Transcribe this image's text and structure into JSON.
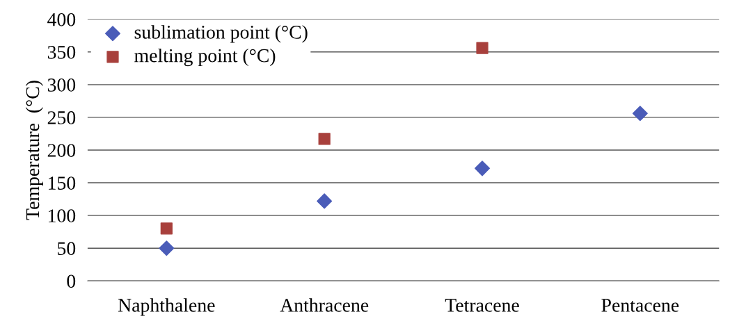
{
  "chart_data": {
    "type": "scatter",
    "ylabel": "Temperature  (°C)",
    "categories": [
      "Naphthalene",
      "Anthracene",
      "Tetracene",
      "Pentacene"
    ],
    "series": [
      {
        "name": "sublimation point (°C)",
        "color": "#4a5cb8",
        "marker": "diamond",
        "values": [
          50,
          122,
          172,
          256
        ]
      },
      {
        "name": "melting point (°C)",
        "color": "#a8403c",
        "marker": "square",
        "values": [
          80,
          217,
          356,
          null
        ]
      }
    ],
    "ylim": [
      0,
      400
    ],
    "yticks": [
      0,
      50,
      100,
      150,
      200,
      250,
      300,
      350,
      400
    ],
    "grid": "y",
    "legend": "top left"
  }
}
